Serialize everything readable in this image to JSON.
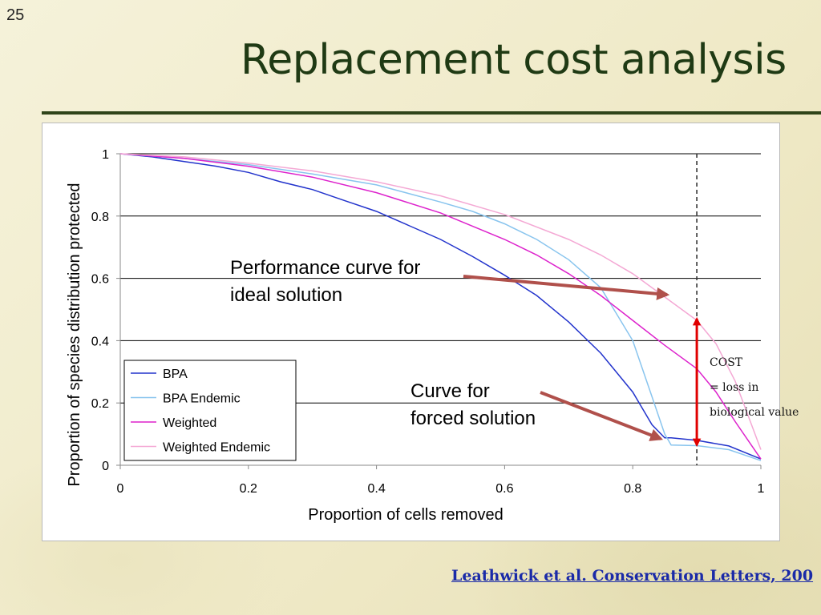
{
  "slide": {
    "number": "25",
    "title": "Replacement cost analysis",
    "citation": "Leathwick et al. Conservation Letters, 200"
  },
  "annotations": {
    "ideal_line1": "Performance curve for",
    "ideal_line2": "ideal solution",
    "forced_line1": "Curve for",
    "forced_line2": "forced solution",
    "cost_line1": "COST",
    "cost_line2": "= loss in",
    "cost_line3": "biological value"
  },
  "colors": {
    "title": "#1f3a14",
    "annotation_arrow": "#b0504b",
    "cost_arrow": "#e00000",
    "link": "#1a2aa8"
  },
  "chart_data": {
    "type": "line",
    "xlabel": "Proportion of cells removed",
    "ylabel": "Proportion of species distribution protected",
    "xlim": [
      0,
      1
    ],
    "ylim": [
      0,
      1
    ],
    "xticks": [
      "0",
      "0.2",
      "0.4",
      "0.6",
      "0.8",
      "1"
    ],
    "yticks": [
      "0",
      "0.2",
      "0.4",
      "0.6",
      "0.8",
      "1"
    ],
    "grid": "horizontal",
    "legend_position": "bottom-left",
    "vertical_marker": {
      "x": 0.9,
      "style": "dashed"
    },
    "series": [
      {
        "name": "BPA",
        "color": "#2233cc",
        "x": [
          0,
          0.05,
          0.1,
          0.15,
          0.2,
          0.25,
          0.3,
          0.35,
          0.4,
          0.45,
          0.5,
          0.55,
          0.6,
          0.65,
          0.7,
          0.75,
          0.8,
          0.83,
          0.85,
          0.86,
          0.9,
          0.95,
          1.0
        ],
        "y": [
          1.0,
          0.99,
          0.975,
          0.96,
          0.94,
          0.91,
          0.885,
          0.85,
          0.815,
          0.77,
          0.725,
          0.67,
          0.61,
          0.545,
          0.46,
          0.36,
          0.235,
          0.13,
          0.088,
          0.088,
          0.08,
          0.062,
          0.02
        ]
      },
      {
        "name": "BPA Endemic",
        "color": "#88c4ee",
        "x": [
          0,
          0.1,
          0.2,
          0.3,
          0.4,
          0.5,
          0.55,
          0.6,
          0.65,
          0.7,
          0.75,
          0.8,
          0.83,
          0.85,
          0.86,
          0.9,
          0.95,
          1.0
        ],
        "y": [
          1.0,
          0.985,
          0.965,
          0.935,
          0.9,
          0.845,
          0.815,
          0.775,
          0.725,
          0.66,
          0.57,
          0.4,
          0.22,
          0.1,
          0.065,
          0.063,
          0.05,
          0.015
        ]
      },
      {
        "name": "Weighted",
        "color": "#dd22cc",
        "x": [
          0,
          0.1,
          0.2,
          0.3,
          0.4,
          0.5,
          0.6,
          0.65,
          0.7,
          0.75,
          0.8,
          0.85,
          0.9,
          0.93,
          0.96,
          1.0
        ],
        "y": [
          1.0,
          0.985,
          0.96,
          0.925,
          0.875,
          0.81,
          0.725,
          0.675,
          0.615,
          0.545,
          0.465,
          0.385,
          0.31,
          0.235,
          0.14,
          0.02
        ]
      },
      {
        "name": "Weighted Endemic",
        "color": "#f4a8d4",
        "x": [
          0,
          0.1,
          0.2,
          0.3,
          0.4,
          0.5,
          0.6,
          0.7,
          0.75,
          0.8,
          0.85,
          0.9,
          0.93,
          0.96,
          1.0
        ],
        "y": [
          1.0,
          0.99,
          0.97,
          0.945,
          0.91,
          0.865,
          0.805,
          0.725,
          0.675,
          0.615,
          0.54,
          0.465,
          0.39,
          0.27,
          0.05
        ]
      }
    ]
  }
}
